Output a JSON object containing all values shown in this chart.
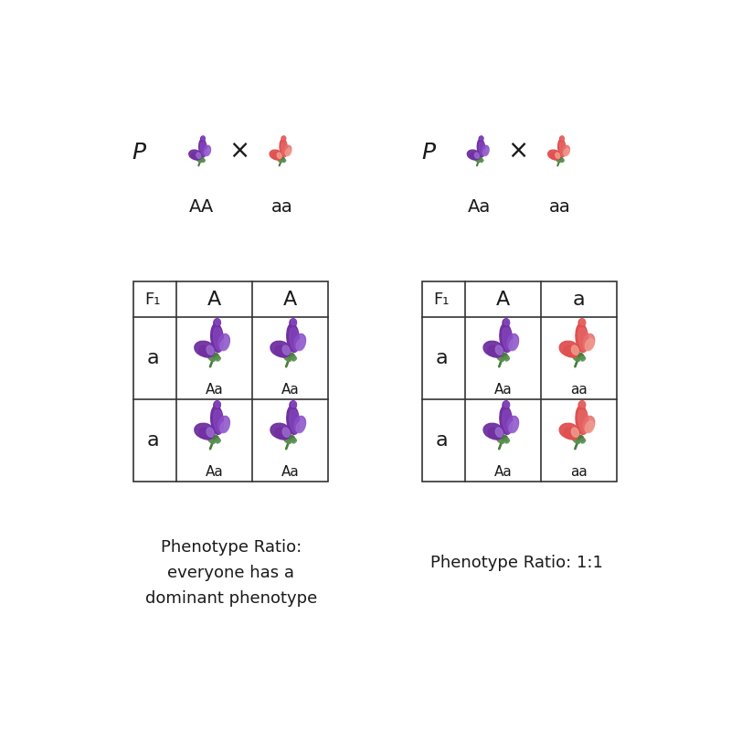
{
  "background_color": "#ffffff",
  "left_cross": {
    "parent_label": "P",
    "parent1_genotype": "AA",
    "parent2_genotype": "aa",
    "f1_label": "F₁",
    "col_headers": [
      "A",
      "A"
    ],
    "row_headers": [
      "a",
      "a"
    ],
    "cell_genotypes": [
      [
        "Aa",
        "Aa"
      ],
      [
        "Aa",
        "Aa"
      ]
    ],
    "cell_colors": [
      [
        "purple",
        "purple"
      ],
      [
        "purple",
        "purple"
      ]
    ],
    "ratio_text": "Phenotype Ratio:\neveryone has a\ndominant phenotype"
  },
  "right_cross": {
    "parent_label": "P",
    "parent1_genotype": "Aa",
    "parent2_genotype": "aa",
    "f1_label": "F₁",
    "col_headers": [
      "A",
      "a"
    ],
    "row_headers": [
      "a",
      "a"
    ],
    "cell_genotypes": [
      [
        "Aa",
        "aa"
      ],
      [
        "Aa",
        "aa"
      ]
    ],
    "cell_colors": [
      [
        "purple",
        "pink"
      ],
      [
        "purple",
        "pink"
      ]
    ],
    "ratio_text": "Phenotype Ratio: 1:1"
  },
  "purple_dark": "#7030A0",
  "purple_mid": "#8B4CC8",
  "purple_light": "#9B6CD0",
  "pink_dark": "#E05050",
  "pink_mid": "#E87070",
  "pink_light": "#F0A090",
  "green_dark": "#4a7c3f",
  "green_mid": "#5a9050",
  "text_color": "#1a1a1a",
  "grid_color": "#333333"
}
